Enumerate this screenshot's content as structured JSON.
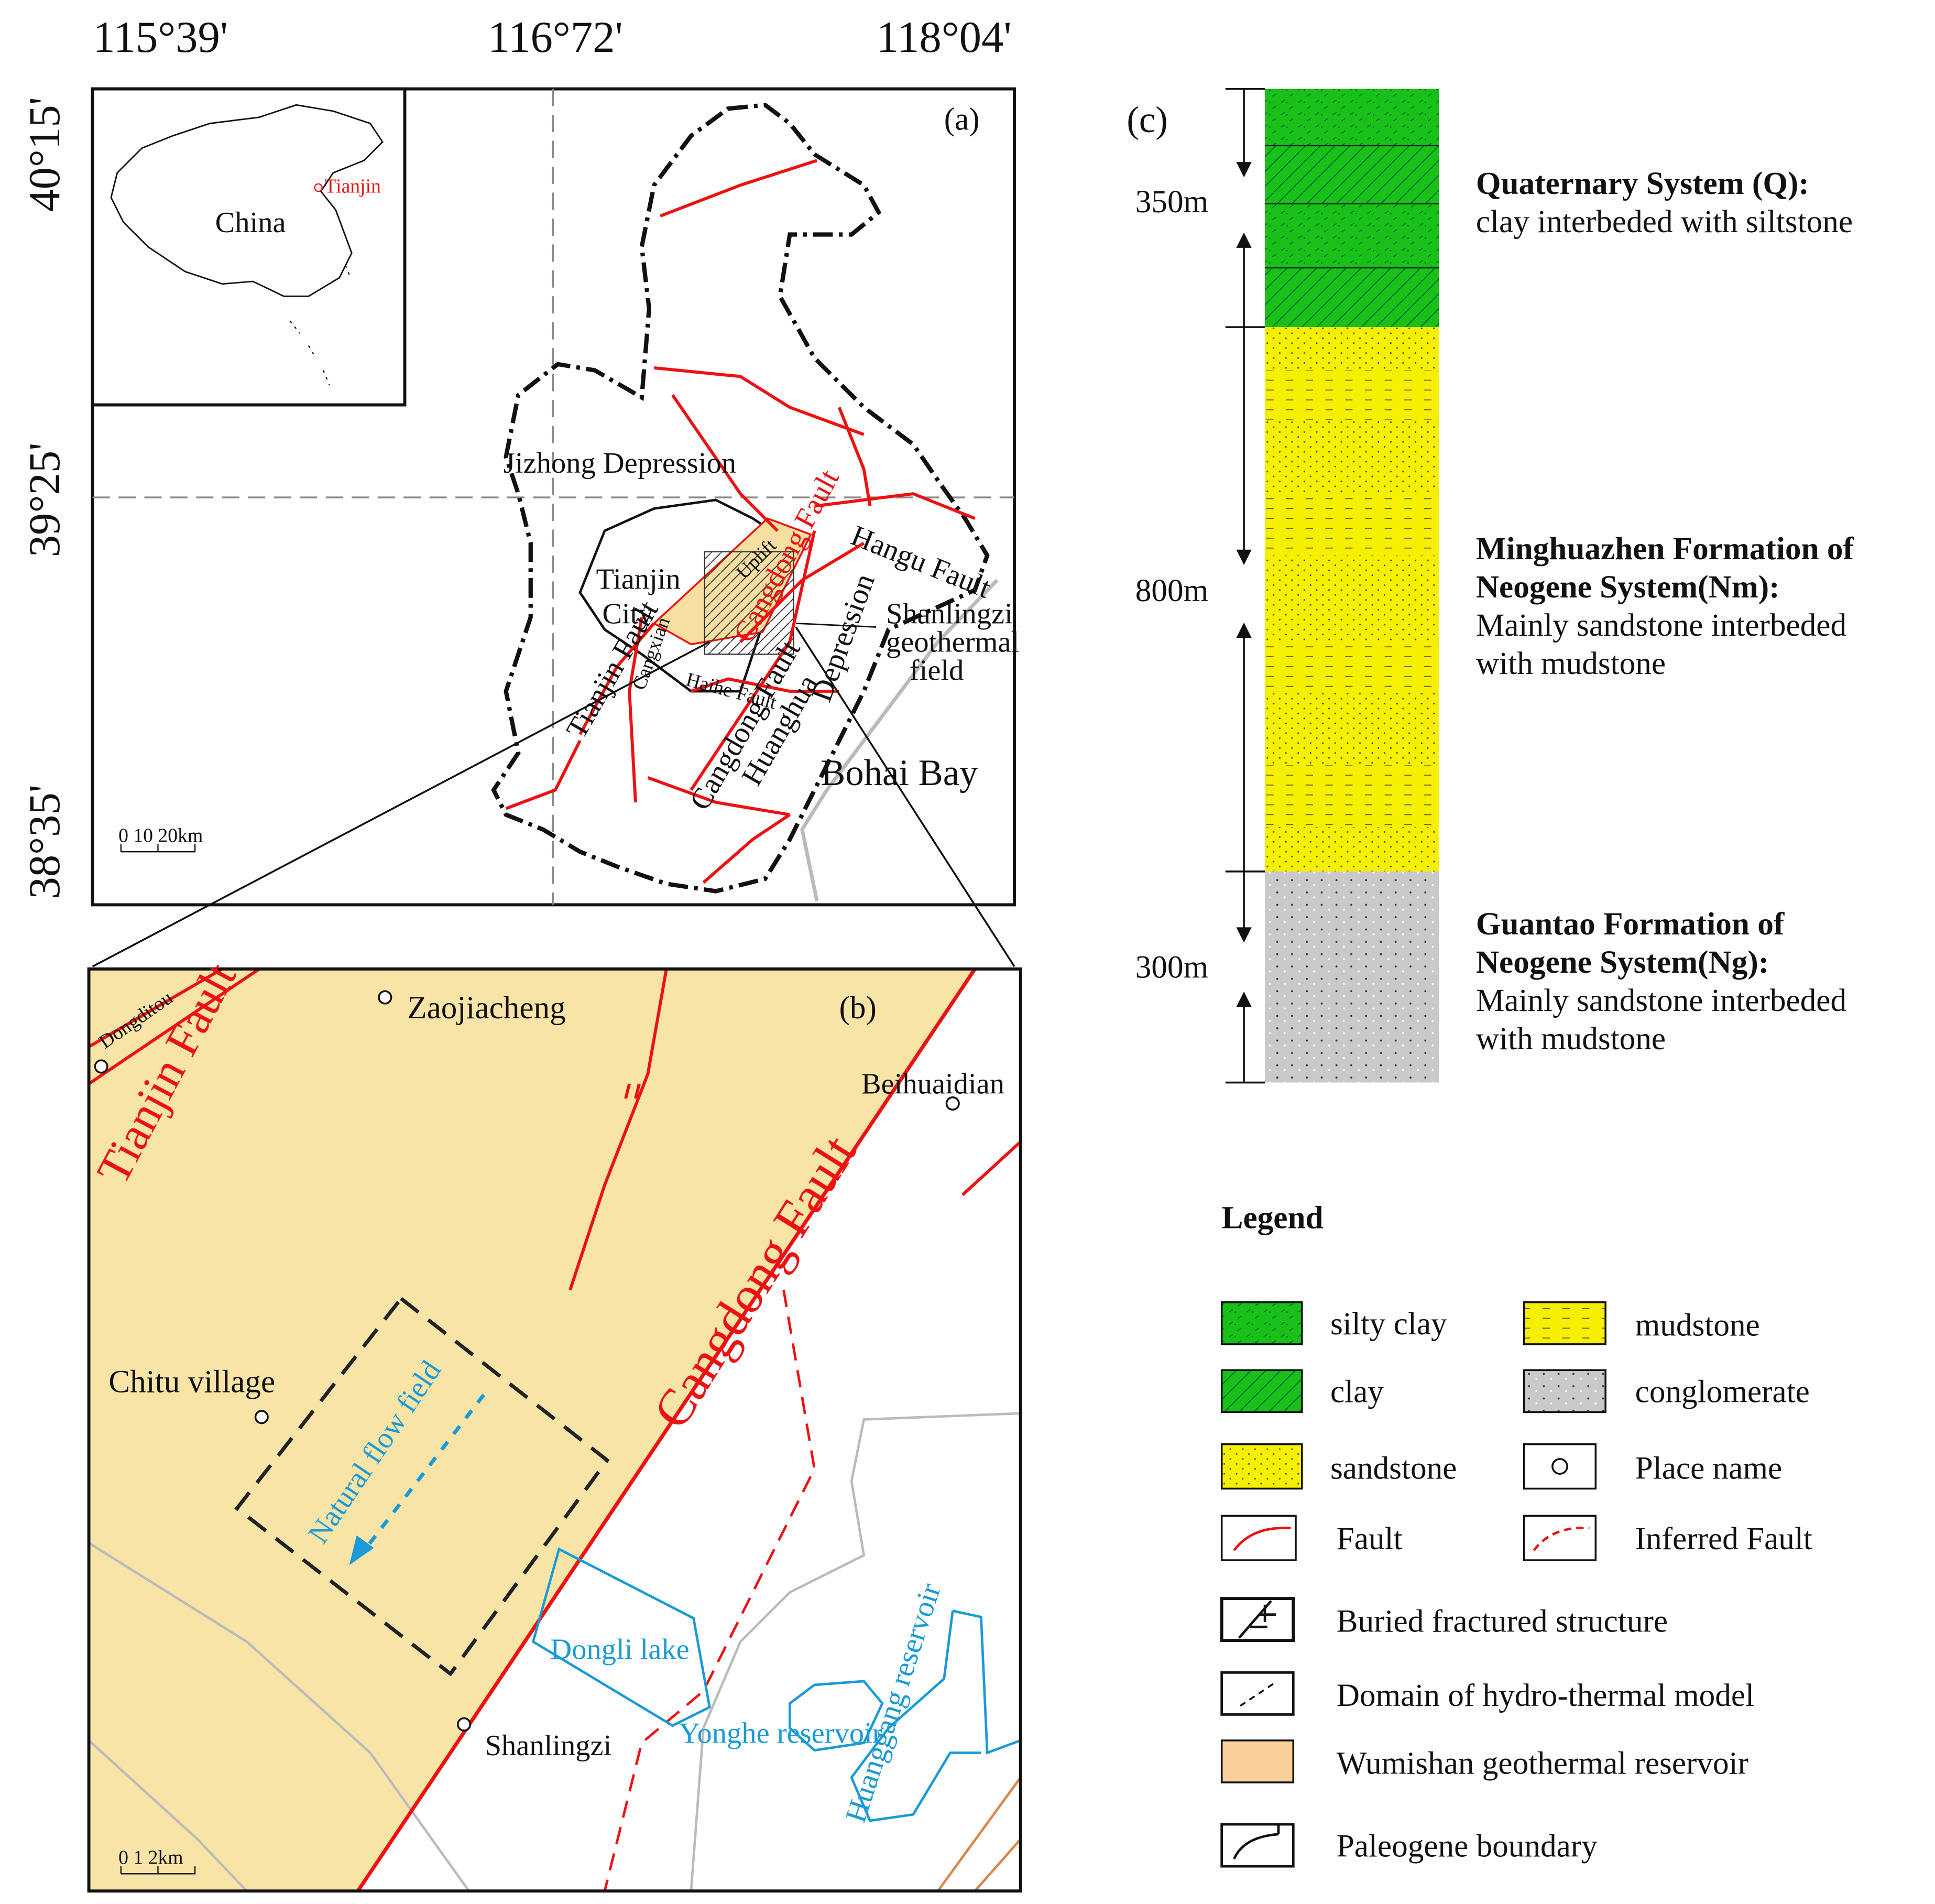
{
  "coordinates": {
    "longitudes": [
      "115°39'",
      "116°72'",
      "118°04'"
    ],
    "latitudes": [
      "40°15'",
      "39°25'",
      "38°35'"
    ]
  },
  "panel_a": {
    "label": "(a)",
    "inset": {
      "country": "China",
      "city": "Tianjin"
    },
    "places": {
      "jizhong": "Jizhong  Depression",
      "tianjin_fault": "Tianjin  Fault",
      "tianjin_city": [
        "Tianjin",
        "City"
      ],
      "uplift": "Uplift",
      "cangdong_fault": "Cangdong  Fault",
      "hangu_fault": "Hangu Fault",
      "shanlingzi": [
        "Shanlingzi",
        "geothermal",
        "field"
      ],
      "cangxian": "Cangxian",
      "haihe_fault": "Haihe Fault",
      "depression": "Depression",
      "cangdong_fault_2": "Cangdong Fault",
      "huanghua": "Huanghua",
      "bohai_bay": "Bohai Bay"
    },
    "scale": "0  10  20km"
  },
  "panel_b": {
    "label": "(b)",
    "places": {
      "dongditou": "Dongditou",
      "zaojiacheng": "Zaojiacheng",
      "tianjin_fault": "Tianjin Fault",
      "beihuaidian": "Beihuaidian",
      "cangdong_fault": "Cangdong Fault",
      "chitu": "Chitu  village",
      "flow": "Natural flow field",
      "dongli": "Dongli lake",
      "shanlingzi": "Shanlingzi",
      "yonghe": "Yonghe reservoir",
      "huanggang": "Huanggang reservoir"
    },
    "scale": "0   1   2km"
  },
  "panel_c": {
    "label": "(c)",
    "thicknesses": [
      "350m",
      "800m",
      "300m"
    ],
    "formations": [
      {
        "title": [
          "Quaternary System (Q):"
        ],
        "description": [
          "clay interbeded with siltstone"
        ]
      },
      {
        "title": [
          "Minghuazhen Formation of",
          "Neogene System(Nm):"
        ],
        "description": [
          "Mainly sandstone interbeded",
          "with mudstone"
        ]
      },
      {
        "title": [
          "Guantao Formation of",
          "Neogene System(Ng):"
        ],
        "description": [
          "Mainly sandstone interbeded",
          "with mudstone"
        ]
      }
    ]
  },
  "legend": {
    "title": "Legend",
    "items": [
      "silty clay",
      "clay",
      "sandstone",
      "Fault",
      "mudstone",
      "conglomerate",
      "Place name",
      "Inferred Fault",
      "Buried fractured structure",
      "Domain of hydro-thermal model",
      "Wumishan geothermal reservoir",
      "Paleogene boundary"
    ]
  }
}
